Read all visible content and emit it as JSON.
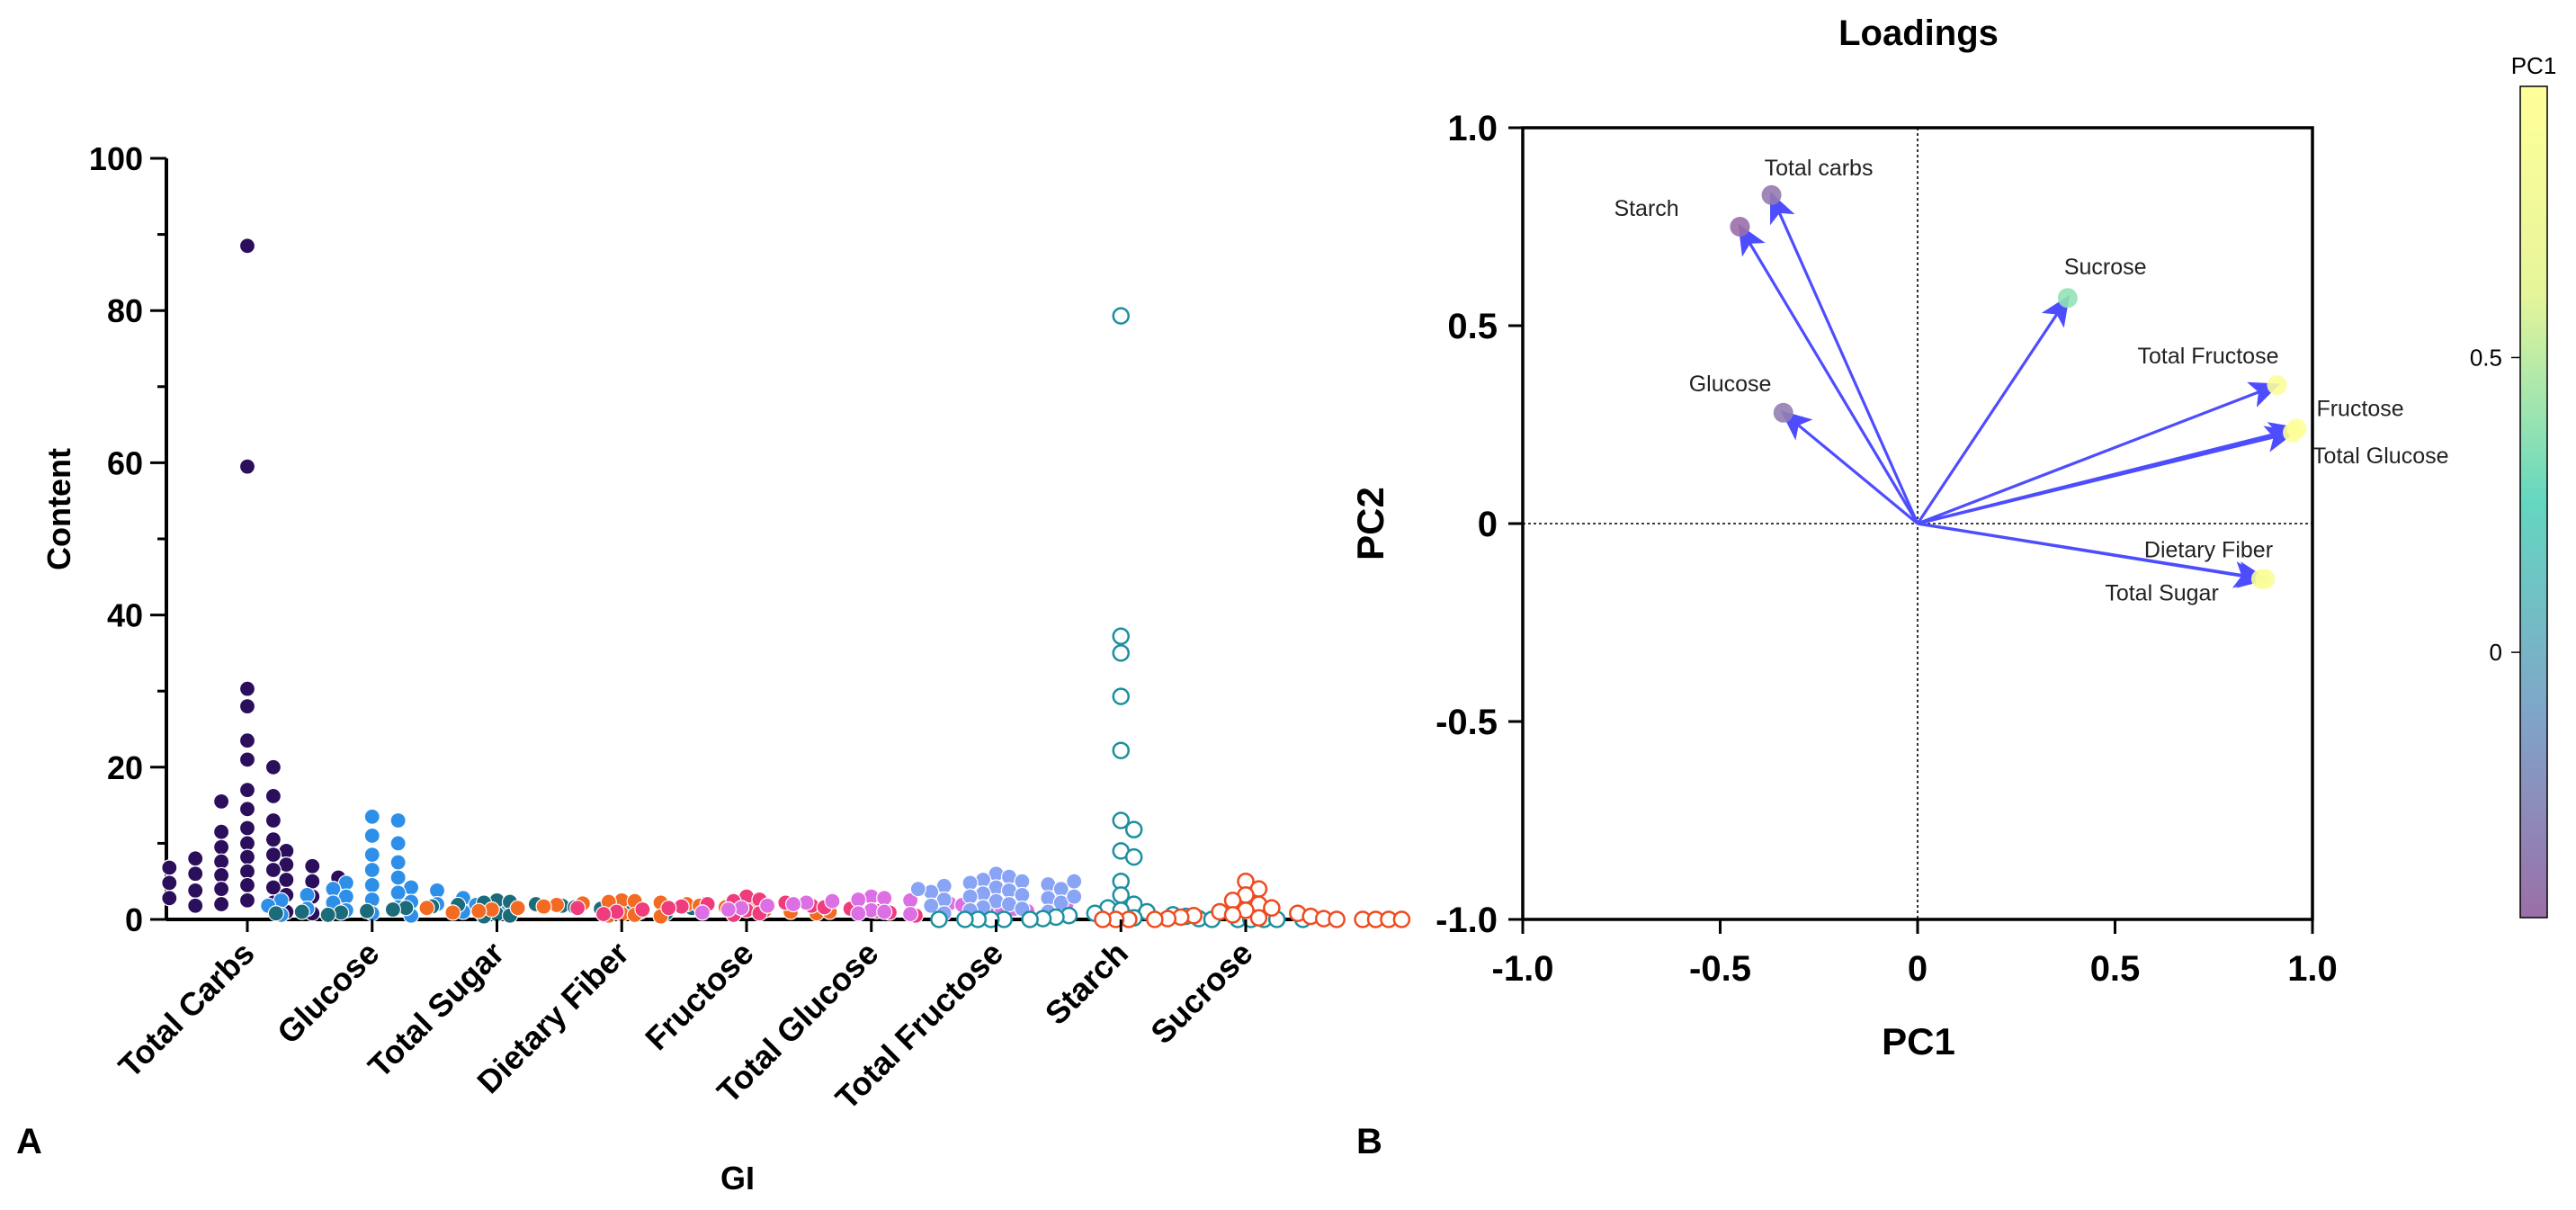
{
  "chart_data": [
    {
      "type": "scatter",
      "panel_label": "A",
      "xlabel": "GI",
      "ylabel": "Content",
      "ylim": [
        0,
        100
      ],
      "yticks": [
        0,
        20,
        40,
        60,
        80,
        100
      ],
      "categories": [
        "Total Carbs",
        "Glucose",
        "Total Sugar",
        "Dietary Fiber",
        "Fructose",
        "Total Glucose",
        "Total Fructose",
        "Starch",
        "Sucrose"
      ],
      "series": [
        {
          "category": "Total Carbs",
          "color": "#2b0f5c",
          "marker": "filled",
          "values": [
            88.5,
            59.5,
            30.3,
            28.0,
            23.5,
            21.0,
            20.0,
            17.0,
            16.2,
            15.5,
            14.5,
            13.0,
            12.0,
            11.5,
            10.5,
            10.0,
            9.5,
            9.0,
            8.5,
            8.2,
            8.0,
            7.6,
            7.2,
            7.0,
            6.8,
            6.5,
            6.3,
            6.0,
            5.8,
            5.5,
            5.2,
            5.0,
            4.8,
            4.5,
            4.2,
            4.0,
            3.8,
            3.5,
            3.2,
            3.0,
            2.8,
            2.5,
            2.2,
            2.0,
            1.8,
            1.5,
            1.0,
            0.8
          ]
        },
        {
          "category": "Glucose",
          "color": "#2e8fe8",
          "marker": "filled",
          "values": [
            13.5,
            13.0,
            11.0,
            10.0,
            8.5,
            7.5,
            6.5,
            5.5,
            4.8,
            4.5,
            4.2,
            4.0,
            3.8,
            3.5,
            3.2,
            3.0,
            2.8,
            2.6,
            2.5,
            2.3,
            2.2,
            2.0,
            1.9,
            1.8,
            1.6,
            1.5,
            1.4,
            1.2,
            1.0,
            0.8,
            0.6,
            0.5
          ]
        },
        {
          "category": "Total Sugar",
          "color": "#1c6b7a",
          "marker": "filled",
          "values": [
            2.5,
            2.3,
            2.2,
            2.0,
            1.9,
            1.8,
            1.7,
            1.6,
            1.5,
            1.4,
            1.3,
            1.2,
            1.1,
            1.0,
            0.9,
            0.8,
            0.7,
            0.6,
            0.5,
            0.4,
            1.5,
            1.0,
            2.0,
            0.8
          ]
        },
        {
          "category": "Dietary Fiber",
          "color": "#f36a23",
          "marker": "filled",
          "values": [
            2.5,
            2.4,
            2.3,
            2.2,
            2.1,
            2.0,
            1.9,
            1.8,
            1.7,
            1.6,
            1.5,
            1.4,
            1.3,
            1.2,
            1.1,
            1.0,
            0.9,
            0.8,
            0.7,
            0.6,
            0.5,
            0.4,
            1.5,
            1.0
          ]
        },
        {
          "category": "Fructose",
          "color": "#ee3c7d",
          "marker": "filled",
          "values": [
            3.0,
            2.6,
            2.4,
            2.2,
            2.0,
            1.8,
            1.7,
            1.6,
            1.5,
            1.4,
            1.3,
            1.2,
            1.1,
            1.0,
            0.9,
            0.8,
            0.7,
            0.6,
            0.5,
            1.5
          ]
        },
        {
          "category": "Total Glucose",
          "color": "#dd6fe4",
          "marker": "filled",
          "values": [
            3.0,
            2.8,
            2.6,
            2.5,
            2.4,
            2.3,
            2.2,
            2.1,
            2.0,
            1.9,
            1.8,
            1.7,
            1.6,
            1.5,
            1.4,
            1.3,
            1.2,
            1.1,
            1.0,
            0.9,
            0.8,
            0.7,
            2.5,
            2.0
          ]
        },
        {
          "category": "Total Fructose",
          "color": "#8aa4f5",
          "marker": "filled",
          "values": [
            6.0,
            5.6,
            5.2,
            5.0,
            4.8,
            4.6,
            4.4,
            4.2,
            4.0,
            3.8,
            3.6,
            3.4,
            3.2,
            3.0,
            2.8,
            2.6,
            2.4,
            2.2,
            2.0,
            1.8,
            1.6,
            1.4,
            1.2,
            1.0,
            0.8,
            5.0,
            4.0,
            3.0
          ]
        },
        {
          "category": "Starch",
          "color": "#1c8fa0",
          "marker": "open",
          "values": [
            79.3,
            37.2,
            35.0,
            29.3,
            22.2,
            13.0,
            11.8,
            9.0,
            8.2,
            5.0,
            3.2,
            2.0,
            1.5,
            1.2,
            1.0,
            0.8,
            0.6,
            0.5,
            0.4,
            0.3,
            0.2,
            0.1,
            0.1,
            0.0,
            0.0,
            0.0,
            0.0,
            0.0,
            0.0,
            0.0,
            0.0,
            0.0,
            0.0,
            0.0,
            0.0
          ]
        },
        {
          "category": "Sucrose",
          "color": "#f04b1e",
          "marker": "open",
          "values": [
            5.0,
            4.0,
            3.2,
            2.5,
            2.0,
            1.5,
            1.2,
            1.0,
            0.8,
            0.6,
            0.5,
            0.4,
            0.3,
            0.2,
            0.1,
            0.1,
            0.0,
            0.0,
            0.0,
            0.0,
            0.0,
            0.0,
            0.0,
            0.0,
            0.0
          ]
        }
      ]
    },
    {
      "type": "scatter",
      "panel_label": "B",
      "title": "Loadings",
      "xlabel": "PC1",
      "ylabel": "PC2",
      "xlim": [
        -1.0,
        1.0
      ],
      "ylim": [
        -1.0,
        1.0
      ],
      "xticks": [
        "-1.0",
        "-0.5",
        "0",
        "0.5",
        "1.0"
      ],
      "yticks": [
        "-1.0",
        "-0.5",
        "0",
        "0.5",
        "1.0"
      ],
      "arrow_color": "#4d4dff",
      "points": [
        {
          "label": "Total carbs",
          "x": -0.37,
          "y": 0.83,
          "pc1": -0.37
        },
        {
          "label": "Starch",
          "x": -0.45,
          "y": 0.75,
          "pc1": -0.45
        },
        {
          "label": "Sucrose",
          "x": 0.38,
          "y": 0.57,
          "pc1": 0.38
        },
        {
          "label": "Glucose",
          "x": -0.34,
          "y": 0.28,
          "pc1": -0.34
        },
        {
          "label": "Total Fructose",
          "x": 0.91,
          "y": 0.35,
          "pc1": 0.91
        },
        {
          "label": "Fructose",
          "x": 0.96,
          "y": 0.24,
          "pc1": 0.96
        },
        {
          "label": "Total Glucose",
          "x": 0.95,
          "y": 0.23,
          "pc1": 0.95
        },
        {
          "label": "Dietary Fiber",
          "x": 0.87,
          "y": -0.14,
          "pc1": 0.87
        },
        {
          "label": "Total Sugar",
          "x": 0.88,
          "y": -0.14,
          "pc1": 0.88
        }
      ],
      "colorbar": {
        "label": "PC1",
        "min": -0.45,
        "max": 0.96,
        "ticks": [
          "0.5",
          "0"
        ],
        "stops": [
          "#9b6fa8",
          "#7fa6c9",
          "#64d7c0",
          "#e6f59a",
          "#ffff99"
        ]
      }
    }
  ]
}
